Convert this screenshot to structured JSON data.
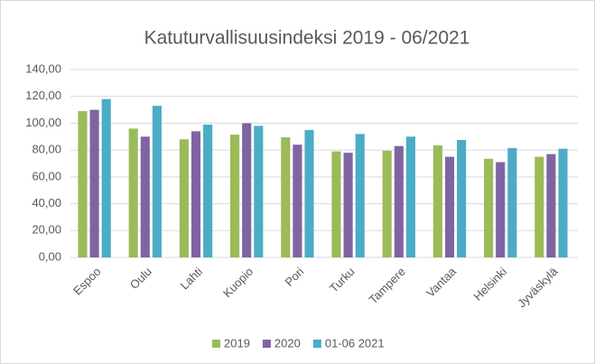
{
  "chart_data": {
    "type": "bar",
    "title": "Katuturvallisuusindeksi 2019 - 06/2021",
    "categories": [
      "Espoo",
      "Oulu",
      "Lahti",
      "Kuopio",
      "Pori",
      "Turku",
      "Tampere",
      "Vantaa",
      "Helsinki",
      "Jyväskylä"
    ],
    "series": [
      {
        "name": "2019",
        "color": "#9bbb59",
        "values": [
          109,
          96,
          88,
          91.5,
          89.5,
          79,
          79.5,
          83.5,
          73.5,
          75
        ]
      },
      {
        "name": "2020",
        "color": "#8064a2",
        "values": [
          110,
          90,
          94,
          100,
          84,
          78,
          83,
          75,
          71,
          77
        ]
      },
      {
        "name": "01-06 2021",
        "color": "#4bacc6",
        "values": [
          118,
          113,
          99,
          98,
          95,
          92,
          90,
          87.5,
          81.5,
          81
        ]
      }
    ],
    "ylim": [
      0,
      140
    ],
    "yticks": [
      {
        "value": 0,
        "label": "0,00"
      },
      {
        "value": 20,
        "label": "20,00"
      },
      {
        "value": 40,
        "label": "40,00"
      },
      {
        "value": 60,
        "label": "60,00"
      },
      {
        "value": 80,
        "label": "80,00"
      },
      {
        "value": 100,
        "label": "100,00"
      },
      {
        "value": 120,
        "label": "120,00"
      },
      {
        "value": 140,
        "label": "140,00"
      }
    ],
    "grid": true,
    "legend": "bottom"
  }
}
